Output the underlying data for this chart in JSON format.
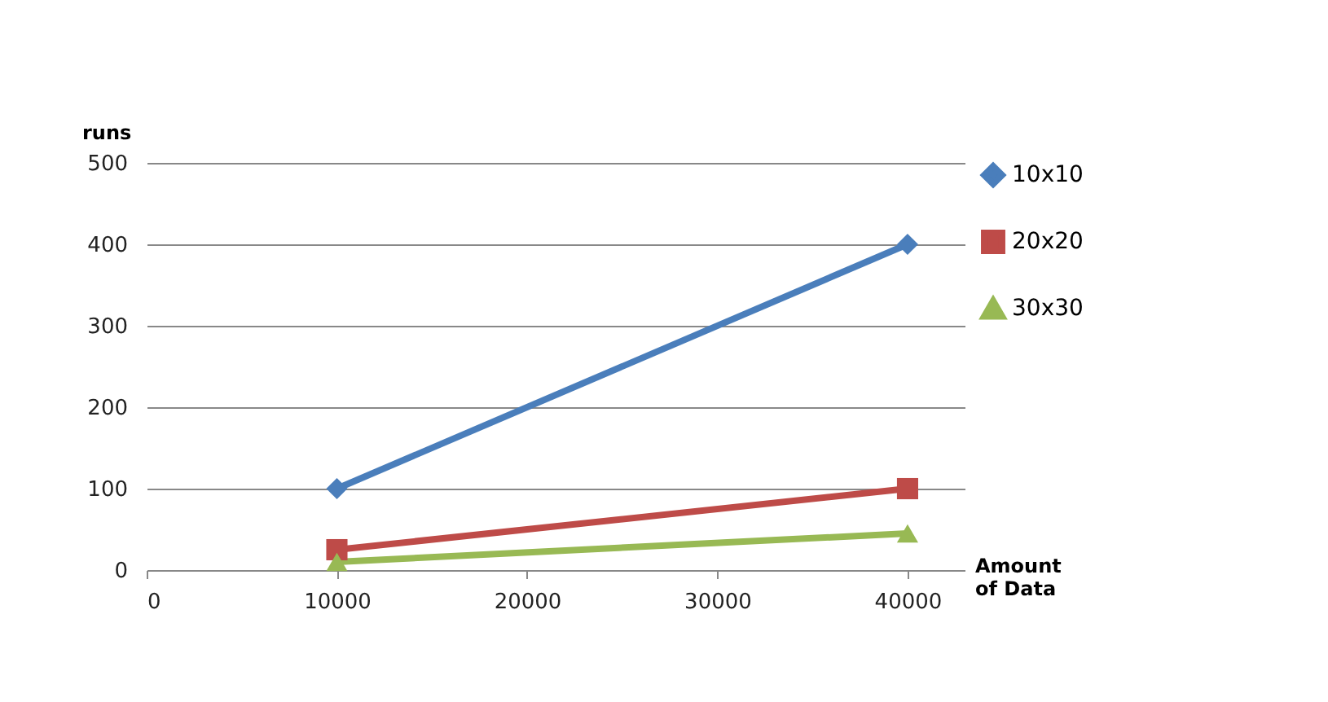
{
  "chart_data": {
    "type": "line",
    "xlabel": "Amount of Data",
    "ylabel": "runs",
    "xlim": [
      0,
      43000
    ],
    "xticks": [
      0,
      10000,
      20000,
      30000,
      40000
    ],
    "ylim": [
      0,
      500
    ],
    "yticks": [
      0,
      100,
      200,
      300,
      400,
      500
    ],
    "grid": "y",
    "legend": "right",
    "x": [
      10000,
      40000
    ],
    "series": [
      {
        "name": "10x10",
        "color": "#4a7ebb",
        "marker": "diamond",
        "values": [
          100,
          400
        ]
      },
      {
        "name": "20x20",
        "color": "#be4b48",
        "marker": "square",
        "values": [
          25,
          100
        ]
      },
      {
        "name": "30x30",
        "color": "#98b954",
        "marker": "triangle",
        "values": [
          10,
          45
        ]
      }
    ]
  }
}
